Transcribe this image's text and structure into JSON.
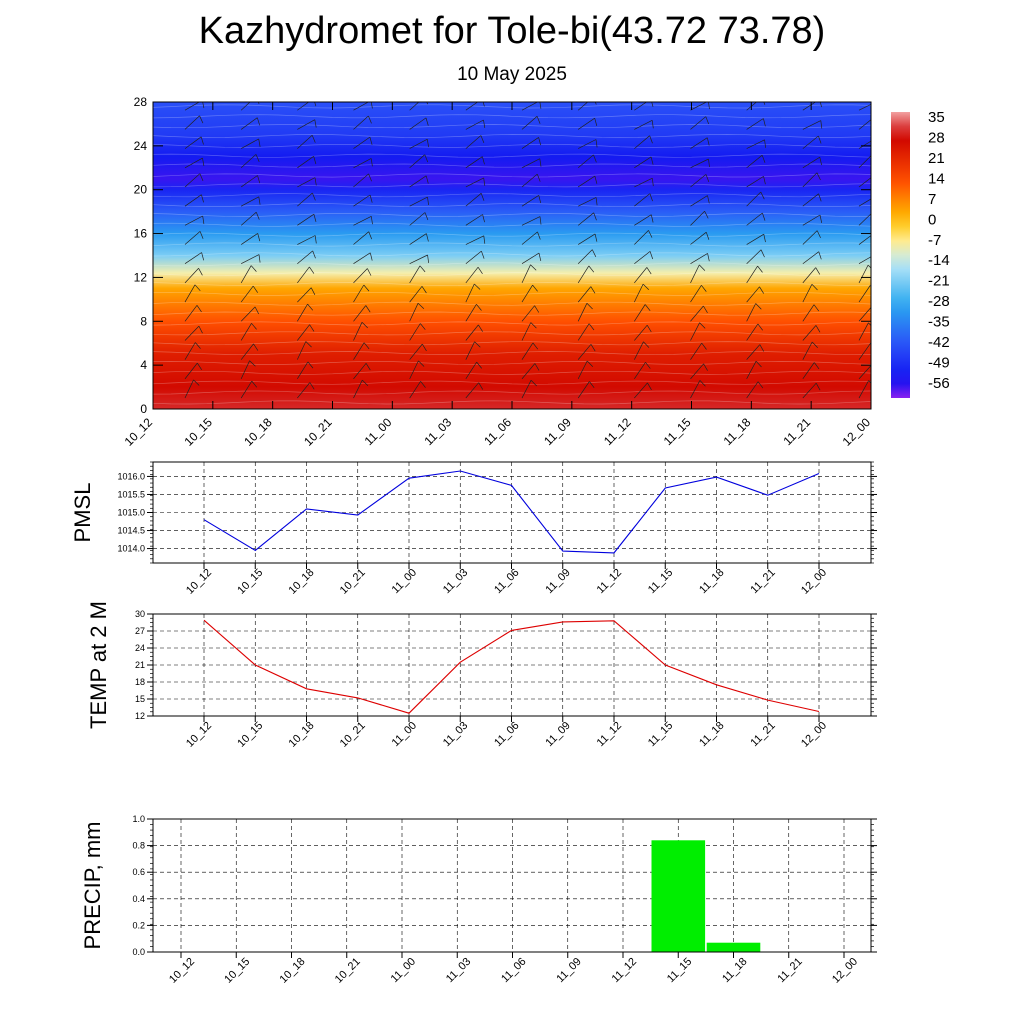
{
  "header": {
    "title": "Kazhydromet for Tole-bi(43.72 73.78)",
    "subtitle": "10 May 2025"
  },
  "chart_data": [
    {
      "type": "heatmap",
      "title": "",
      "xlabel": "",
      "ylabel": "",
      "x_ticks": [
        "10_12",
        "10_15",
        "10_18",
        "10_21",
        "11_00",
        "11_03",
        "11_06",
        "11_09",
        "11_12",
        "11_15",
        "11_18",
        "11_21",
        "12_00"
      ],
      "y_ticks": [
        0,
        4,
        8,
        12,
        16,
        20,
        24,
        28
      ],
      "ylim": [
        0,
        28
      ],
      "colorbar_ticks": [
        35,
        28,
        21,
        14,
        7,
        0,
        -7,
        -14,
        -21,
        -28,
        -35,
        -42,
        -49,
        -56
      ],
      "colorbar_range": [
        -60,
        38
      ],
      "values_profile": [
        {
          "level": 0,
          "value": 32
        },
        {
          "level": 2,
          "value": 28
        },
        {
          "level": 5,
          "value": 24
        },
        {
          "level": 8,
          "value": 14
        },
        {
          "level": 11,
          "value": 4
        },
        {
          "level": 12.4,
          "value": -8
        },
        {
          "level": 14,
          "value": -20
        },
        {
          "level": 16,
          "value": -30
        },
        {
          "level": 18,
          "value": -40
        },
        {
          "level": 20,
          "value": -50
        },
        {
          "level": 21,
          "value": -56
        },
        {
          "level": 23,
          "value": -52
        },
        {
          "level": 25,
          "value": -46
        },
        {
          "level": 28,
          "value": -42
        }
      ],
      "colors": {
        "c35": "#f2a0a0",
        "c28": "#cc0000",
        "c14": "#ff5000",
        "c0": "#ffc000",
        "c_7": "#fff0a0",
        "c_14": "#b8e8f8",
        "c_28": "#2aa8f0",
        "c_42": "#2a50f8",
        "c_56": "#1010f0",
        "c_60": "#8a20f0"
      },
      "wind_barbs": true
    },
    {
      "type": "line",
      "ylabel": "PMSL",
      "categories": [
        "10_12",
        "10_15",
        "10_18",
        "10_21",
        "11_00",
        "11_03",
        "11_06",
        "11_09",
        "11_12",
        "11_15",
        "11_18",
        "11_21",
        "12_00"
      ],
      "values": [
        1014.8,
        1013.95,
        1015.1,
        1014.93,
        1015.95,
        1016.15,
        1015.75,
        1013.93,
        1013.88,
        1015.68,
        1015.98,
        1015.48,
        1016.08
      ],
      "y_ticks": [
        "1014.0",
        "1014.5",
        "1015.0",
        "1015.5",
        "1016.0"
      ],
      "ylim": [
        1013.6,
        1016.4
      ],
      "color": "#0000dd",
      "grid": true
    },
    {
      "type": "line",
      "ylabel": "TEMP at 2 M",
      "categories": [
        "10_12",
        "10_15",
        "10_18",
        "10_21",
        "11_00",
        "11_03",
        "11_06",
        "11_09",
        "11_12",
        "11_15",
        "11_18",
        "11_21",
        "12_00"
      ],
      "values": [
        28.9,
        21.0,
        16.8,
        15.2,
        12.5,
        21.5,
        27.1,
        28.6,
        28.8,
        21.0,
        17.5,
        14.8,
        12.8
      ],
      "y_ticks": [
        "12",
        "15",
        "18",
        "21",
        "24",
        "27",
        "30"
      ],
      "ylim": [
        12,
        30
      ],
      "color": "#dd0000",
      "grid": true
    },
    {
      "type": "bar",
      "ylabel": "PRECIP, mm",
      "categories": [
        "10_12",
        "10_15",
        "10_18",
        "10_21",
        "11_00",
        "11_03",
        "11_06",
        "11_09",
        "11_12",
        "11_15",
        "11_18",
        "11_21",
        "12_00"
      ],
      "values": [
        0,
        0,
        0,
        0,
        0,
        0,
        0,
        0,
        0,
        0.84,
        0.07,
        0,
        0
      ],
      "y_ticks": [
        "0.0",
        "0.2",
        "0.4",
        "0.6",
        "0.8",
        "1.0"
      ],
      "ylim": [
        0,
        1
      ],
      "color": "#00ee00",
      "grid": true
    }
  ]
}
